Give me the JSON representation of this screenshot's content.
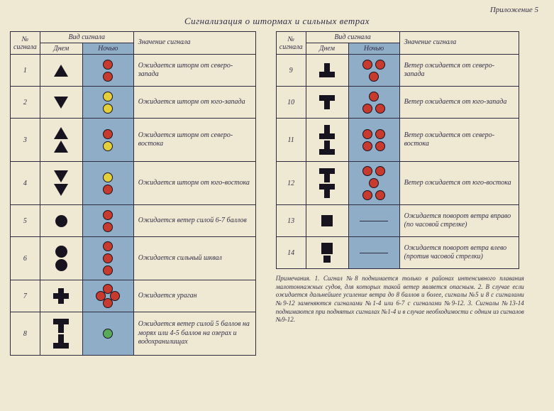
{
  "appendix": "Приложение 5",
  "title": "Сигнализация о штормах и сильных ветрах",
  "headers": {
    "num": "№ сигнала",
    "vid": "Вид сигнала",
    "day": "Днем",
    "night": "Ночью",
    "meaning": "Значение сигнала"
  },
  "colors": {
    "page_bg": "#efe8d3",
    "ink": "#322e47",
    "night_bg": "#8fadc7",
    "shape_black": "#17141f",
    "light_red": "#c73a2e",
    "light_yellow": "#e4cf3b",
    "light_green": "#5aa85a",
    "light_white": "#eae4cf"
  },
  "left": [
    {
      "n": "1",
      "day": [
        "tri-up"
      ],
      "night": [
        [
          "red"
        ],
        [
          "red"
        ]
      ],
      "text": "Ожидается шторм от северо-запада"
    },
    {
      "n": "2",
      "day": [
        "tri-dn"
      ],
      "night": [
        [
          "yel"
        ],
        [
          "yel"
        ]
      ],
      "text": "Ожидается шторм от юго-запада"
    },
    {
      "n": "3",
      "day": [
        "tri-up",
        "tri-up"
      ],
      "night": [
        [
          "red"
        ],
        [
          "yel"
        ]
      ],
      "text": "Ожидается шторм от северо-востока"
    },
    {
      "n": "4",
      "day": [
        "tri-dn",
        "tri-dn"
      ],
      "night": [
        [
          "yel"
        ],
        [
          "red"
        ]
      ],
      "text": "Ожидается шторм от юго-востока"
    },
    {
      "n": "5",
      "day": [
        "circ"
      ],
      "night": [
        [
          "red"
        ],
        [
          "red"
        ]
      ],
      "text": "Ожидается ветер силой 6-7 баллов"
    },
    {
      "n": "6",
      "day": [
        "circ",
        "circ"
      ],
      "night": [
        [
          "red"
        ],
        [
          "red"
        ],
        [
          "red"
        ]
      ],
      "text": "Ожидается сильный шквал"
    },
    {
      "n": "7",
      "day": [
        "plus"
      ],
      "night": "diamond",
      "text": "Ожидается ураган"
    },
    {
      "n": "8",
      "day": [
        "t-down",
        "t-up"
      ],
      "night": [
        [
          "grn"
        ]
      ],
      "text": "Ожидается ветер силой 5 баллов на морях или 4-5 баллов на озерах и водохранилищах"
    }
  ],
  "right": [
    {
      "n": "9",
      "day": [
        "t-up"
      ],
      "night": [
        [
          "red",
          "red"
        ],
        [
          "red"
        ]
      ],
      "text": "Ветер ожидается от северо-запада"
    },
    {
      "n": "10",
      "day": [
        "t-down"
      ],
      "night": [
        [
          "red"
        ],
        [
          "red",
          "red"
        ]
      ],
      "text": "Ветер ожидается от юго-запада"
    },
    {
      "n": "11",
      "day": [
        "t-up",
        "t-up"
      ],
      "night": [
        [
          "red",
          "red"
        ],
        [
          "red",
          "red"
        ]
      ],
      "text": "Ветер ожидается от северо-востока"
    },
    {
      "n": "12",
      "day": [
        "t-down",
        "t-down"
      ],
      "night": [
        [
          "red",
          "red"
        ],
        [
          "red"
        ],
        [
          "red",
          "red"
        ]
      ],
      "text": "Ветер ожидается от юго-востока"
    },
    {
      "n": "13",
      "day": [
        "sq"
      ],
      "night": "dash",
      "text": "Ожидается поворот ветра вправо (по часовой стрелке)"
    },
    {
      "n": "14",
      "day": [
        "sq",
        "sq-sm"
      ],
      "night": "dash",
      "text": "Ожидается поворот ветра влево (против часовой стрелки)"
    }
  ],
  "notes": "Примечания. 1. Сигнал №8 поднимается только в районах интенсивного плавания малотоннажных судов, для которых такой ветер является опасным. 2. В случае если ожидается дальнейшее усиление ветра до 8 баллов и более, сигналы №5 и 8 с сигналами №9-12 заменяются сигналами №1-4 или 6-7 с сигналами №9-12. 3. Сигналы №13-14 поднимаются при поднятых сигналах №1-4 и в случае необходимости с одним из сигналов №9-12."
}
